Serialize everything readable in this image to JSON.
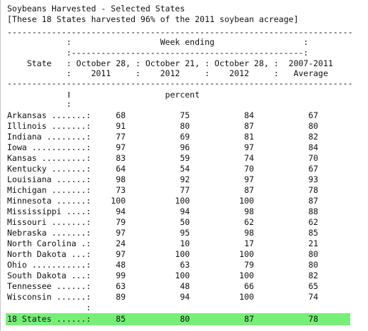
{
  "header": {
    "title": "Soybeans Harvested - Selected States",
    "subtitle": "[These 18 States harvested 96% of the 2011 soybean acreage]"
  },
  "rule": "----------------------------------------------------------------------",
  "col_headers": [
    "            :                  Week ending                  :",
    "            :-----------------------------------------------:",
    "    State   : October 28, : October 21, : October 28, :  2007-2011",
    "            :    2011     :    2012     :    2012     :   Average"
  ],
  "units_rows": [
    "            :",
    "            :                   percent",
    "            :"
  ],
  "rows": [
    "Arkansas .......:     68           75           84           67",
    "Illinois .......:     91           80           87           80",
    "Indiana ........:     77           69           81           82",
    "Iowa ...........:     97           96           97           84",
    "Kansas .........:     83           59           74           70",
    "Kentucky .......:     64           54           70           67",
    "Louisiana ......:     98           92           97           93",
    "Michigan .......:     73           77           87           78",
    "Minnesota ......:    100          100          100           87",
    "Mississippi ....:     94           94           98           88",
    "Missouri .......:     79           50           62           62",
    "Nebraska .......:     97           95           98           85",
    "North Carolina .:     24           10           17           21",
    "North Dakota ...:     97          100          100           80",
    "Ohio ...........:     48           63           79           80",
    "South Dakota ...:     99          100          100           82",
    "Tennessee ......:     63           48           66           65",
    "Wisconsin ......:     89           94          100           74"
  ],
  "blank_row": "                :",
  "total_row": "18 States ......:     85           80           87           78",
  "colors": {
    "highlight": "#77ee77",
    "text": "#111111"
  }
}
